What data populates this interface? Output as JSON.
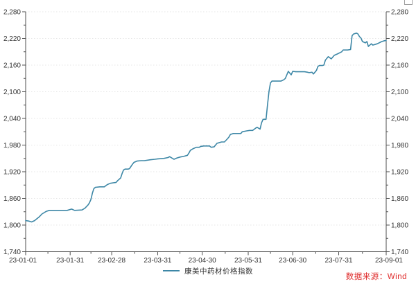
{
  "source_note": "数据来源：Wind",
  "legend": {
    "label": "康美中药材价格指数"
  },
  "colors": {
    "line": "#3d87a6",
    "source_red": "#df2b2b",
    "axis": "#4d4d4d",
    "grid": "#e4e4e4",
    "tick_label": "#333333"
  },
  "chart_data": {
    "type": "line",
    "title": "",
    "xlabel": "",
    "ylabel": "",
    "grid": "horizontal-dotted",
    "legend_position": "bottom-center",
    "ylim": [
      1740,
      2280
    ],
    "y_major_step": 60,
    "y_minor_step": 30,
    "y_tick_labels": [
      "1,740",
      "1,800",
      "1,860",
      "1,920",
      "1,980",
      "2,040",
      "2,100",
      "2,160",
      "2,220",
      "2,280"
    ],
    "x_range_days": 243,
    "x_tick_labels": [
      "23-01-01",
      "23-01-31",
      "23-02-28",
      "23-03-31",
      "23-04-30",
      "23-05-31",
      "23-06-30",
      "23-07-31",
      "23-09-01"
    ],
    "x_tick_days": [
      0,
      30,
      58,
      89,
      119,
      150,
      180,
      211,
      243
    ],
    "x_minor_days": [
      15,
      44,
      73.5,
      104,
      134.5,
      165,
      195.5,
      227
    ],
    "series": [
      {
        "name": "康美中药材价格指数",
        "points": [
          [
            0,
            1810
          ],
          [
            2,
            1809
          ],
          [
            4,
            1807
          ],
          [
            6,
            1810
          ],
          [
            9,
            1818
          ],
          [
            11,
            1825
          ],
          [
            14,
            1831
          ],
          [
            16,
            1833
          ],
          [
            20,
            1833
          ],
          [
            24,
            1833
          ],
          [
            28,
            1833
          ],
          [
            31,
            1836
          ],
          [
            33,
            1833
          ],
          [
            38,
            1834
          ],
          [
            40,
            1838
          ],
          [
            42,
            1845
          ],
          [
            43,
            1850
          ],
          [
            44,
            1858
          ],
          [
            45,
            1872
          ],
          [
            46,
            1882
          ],
          [
            47,
            1885
          ],
          [
            50,
            1886
          ],
          [
            53,
            1886
          ],
          [
            55,
            1891
          ],
          [
            57,
            1894
          ],
          [
            59,
            1895
          ],
          [
            61,
            1896
          ],
          [
            62,
            1900
          ],
          [
            64,
            1906
          ],
          [
            65,
            1916
          ],
          [
            66,
            1924
          ],
          [
            67,
            1926
          ],
          [
            69,
            1926
          ],
          [
            70,
            1927
          ],
          [
            72,
            1937
          ],
          [
            73,
            1941
          ],
          [
            75,
            1944
          ],
          [
            78,
            1945
          ],
          [
            80,
            1945
          ],
          [
            84,
            1947
          ],
          [
            87,
            1948
          ],
          [
            89,
            1949
          ],
          [
            93,
            1950
          ],
          [
            96,
            1952
          ],
          [
            97,
            1954
          ],
          [
            99,
            1950
          ],
          [
            100,
            1948
          ],
          [
            102,
            1951
          ],
          [
            104,
            1953
          ],
          [
            107,
            1955
          ],
          [
            109,
            1957
          ],
          [
            110,
            1962
          ],
          [
            111,
            1968
          ],
          [
            113,
            1972
          ],
          [
            115,
            1975
          ],
          [
            117,
            1975
          ],
          [
            118,
            1977
          ],
          [
            120,
            1978
          ],
          [
            122,
            1978
          ],
          [
            124,
            1978
          ],
          [
            125,
            1975
          ],
          [
            127,
            1976
          ],
          [
            129,
            1984
          ],
          [
            130,
            1985
          ],
          [
            132,
            1987
          ],
          [
            134,
            1987
          ],
          [
            136,
            1994
          ],
          [
            137,
            1998
          ],
          [
            138,
            2004
          ],
          [
            140,
            2006
          ],
          [
            143,
            2006
          ],
          [
            145,
            2006
          ],
          [
            146,
            2010
          ],
          [
            149,
            2012
          ],
          [
            151,
            2013
          ],
          [
            153,
            2013
          ],
          [
            155,
            2018
          ],
          [
            156,
            2020
          ],
          [
            158,
            2016
          ],
          [
            159,
            2030
          ],
          [
            160,
            2038
          ],
          [
            162,
            2038
          ],
          [
            163,
            2070
          ],
          [
            164,
            2100
          ],
          [
            165,
            2120
          ],
          [
            166,
            2124
          ],
          [
            169,
            2124
          ],
          [
            172,
            2124
          ],
          [
            174,
            2127
          ],
          [
            175,
            2130
          ],
          [
            177,
            2146
          ],
          [
            179,
            2138
          ],
          [
            180,
            2146
          ],
          [
            182,
            2145
          ],
          [
            185,
            2145
          ],
          [
            188,
            2145
          ],
          [
            190,
            2144
          ],
          [
            191,
            2143
          ],
          [
            193,
            2144
          ],
          [
            194,
            2140
          ],
          [
            196,
            2148
          ],
          [
            197,
            2157
          ],
          [
            198,
            2159
          ],
          [
            200,
            2159
          ],
          [
            201,
            2160
          ],
          [
            202,
            2171
          ],
          [
            204,
            2179
          ],
          [
            206,
            2174
          ],
          [
            208,
            2182
          ],
          [
            210,
            2185
          ],
          [
            213,
            2190
          ],
          [
            214,
            2194
          ],
          [
            217,
            2194
          ],
          [
            219,
            2195
          ],
          [
            220,
            2226
          ],
          [
            221,
            2230
          ],
          [
            223,
            2232
          ],
          [
            224,
            2230
          ],
          [
            225,
            2224
          ],
          [
            226,
            2221
          ],
          [
            227,
            2213
          ],
          [
            229,
            2210
          ],
          [
            230,
            2213
          ],
          [
            231,
            2202
          ],
          [
            233,
            2208
          ],
          [
            234,
            2205
          ],
          [
            237,
            2208
          ],
          [
            240,
            2213
          ],
          [
            242,
            2215
          ],
          [
            243,
            2215
          ]
        ]
      }
    ]
  }
}
